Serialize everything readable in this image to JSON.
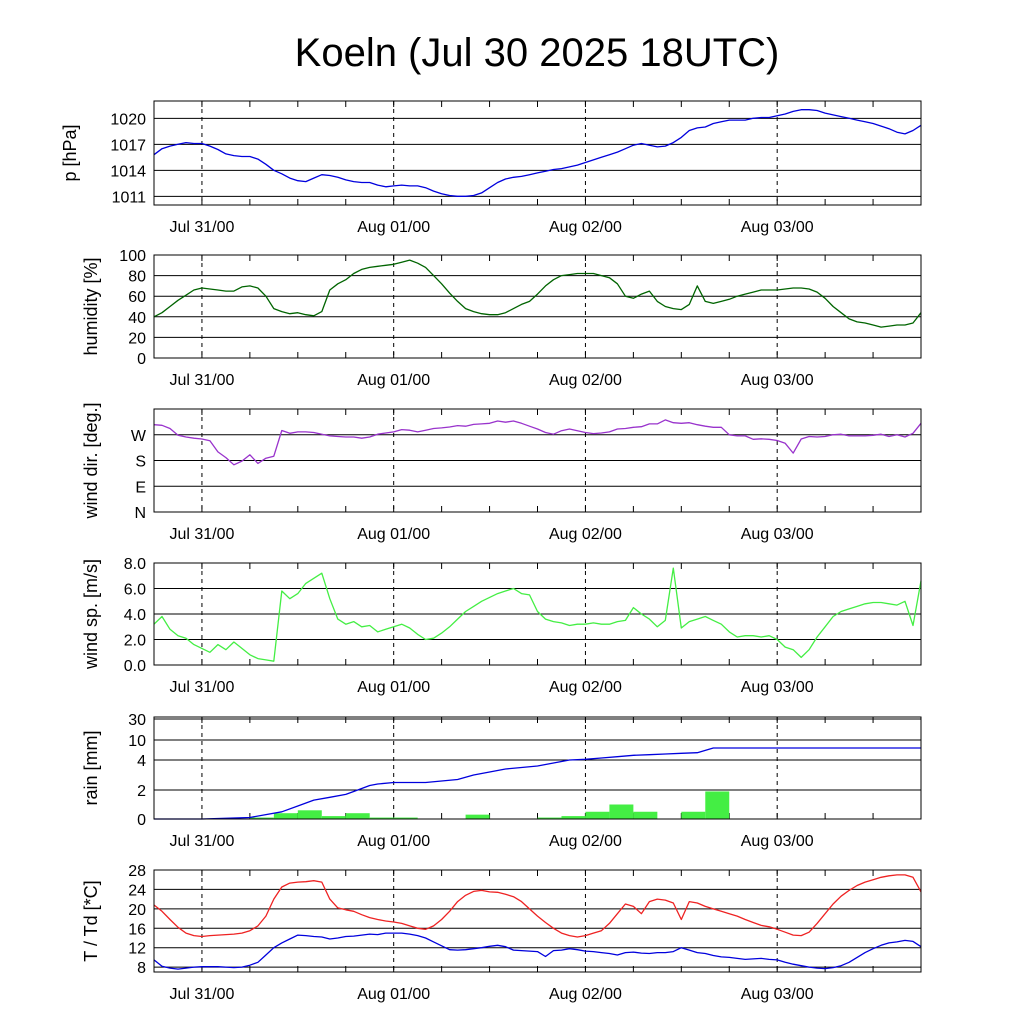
{
  "title": "Koeln (Jul 30 2025 18UTC)",
  "x_tick_labels": [
    "Jul 31/00",
    "Aug 01/00",
    "Aug 02/00",
    "Aug 03/00"
  ],
  "x_range_hours": [
    0,
    96
  ],
  "x_major_hours": [
    6,
    30,
    54,
    78
  ],
  "chart_data": [
    {
      "type": "line",
      "ylabel": "p [hPa]",
      "yticks": [
        1011,
        1014,
        1017,
        1020
      ],
      "ylim": [
        1010,
        1022
      ],
      "color": "#0000dd",
      "x": [
        0,
        1,
        2,
        3,
        4,
        5,
        6,
        7,
        8,
        9,
        10,
        11,
        12,
        13,
        14,
        15,
        16,
        17,
        18,
        19,
        20,
        21,
        22,
        23,
        24,
        25,
        26,
        27,
        28,
        29,
        30,
        31,
        32,
        33,
        34,
        35,
        36,
        37,
        38,
        39,
        40,
        41,
        42,
        43,
        44,
        45,
        46,
        47,
        48,
        49,
        50,
        51,
        52,
        53,
        54,
        55,
        56,
        57,
        58,
        59,
        60,
        61,
        62,
        63,
        64,
        65,
        66,
        67,
        68,
        69,
        70,
        71,
        72,
        73,
        74,
        75,
        76,
        77,
        78,
        79,
        80,
        81,
        82,
        83,
        84,
        85,
        86,
        87,
        88,
        89,
        90,
        91,
        92,
        93,
        94,
        95,
        96
      ],
      "values": [
        1015.8,
        1016.5,
        1016.8,
        1017.0,
        1017.2,
        1017.1,
        1017.1,
        1016.8,
        1016.4,
        1015.9,
        1015.7,
        1015.6,
        1015.6,
        1015.3,
        1014.7,
        1014.0,
        1013.6,
        1013.1,
        1012.8,
        1012.7,
        1013.1,
        1013.5,
        1013.4,
        1013.2,
        1012.9,
        1012.7,
        1012.6,
        1012.6,
        1012.3,
        1012.1,
        1012.2,
        1012.3,
        1012.2,
        1012.2,
        1012.0,
        1011.6,
        1011.3,
        1011.1,
        1011.0,
        1011.0,
        1011.1,
        1011.4,
        1012.0,
        1012.6,
        1013.0,
        1013.2,
        1013.3,
        1013.5,
        1013.7,
        1013.9,
        1014.1,
        1014.2,
        1014.4,
        1014.6,
        1014.9,
        1015.2,
        1015.5,
        1015.8,
        1016.1,
        1016.5,
        1016.9,
        1017.1,
        1016.9,
        1016.7,
        1016.8,
        1017.2,
        1017.8,
        1018.6,
        1018.9,
        1019.0,
        1019.4,
        1019.6,
        1019.8,
        1019.8,
        1019.8,
        1020.0,
        1020.1,
        1020.1,
        1020.3,
        1020.5,
        1020.8,
        1021.0,
        1021.0,
        1020.9,
        1020.6,
        1020.4,
        1020.2,
        1020.0,
        1019.8,
        1019.6,
        1019.4,
        1019.1,
        1018.8,
        1018.4,
        1018.2,
        1018.6,
        1019.2
      ]
    },
    {
      "type": "line",
      "ylabel": "humidity [%]",
      "yticks": [
        0,
        20,
        40,
        60,
        80,
        100
      ],
      "ylim": [
        0,
        100
      ],
      "color": "#006400",
      "x": [
        0,
        1,
        2,
        3,
        4,
        5,
        6,
        7,
        8,
        9,
        10,
        11,
        12,
        13,
        14,
        15,
        16,
        17,
        18,
        19,
        20,
        21,
        22,
        23,
        24,
        25,
        26,
        27,
        28,
        29,
        30,
        31,
        32,
        33,
        34,
        35,
        36,
        37,
        38,
        39,
        40,
        41,
        42,
        43,
        44,
        45,
        46,
        47,
        48,
        49,
        50,
        51,
        52,
        53,
        54,
        55,
        56,
        57,
        58,
        59,
        60,
        61,
        62,
        63,
        64,
        65,
        66,
        67,
        68,
        69,
        70,
        71,
        72,
        73,
        74,
        75,
        76,
        77,
        78,
        79,
        80,
        81,
        82,
        83,
        84,
        85,
        86,
        87,
        88,
        89,
        90,
        91,
        92,
        93,
        94,
        95,
        96
      ],
      "values": [
        40,
        44,
        50,
        56,
        61,
        66,
        68,
        67,
        66,
        65,
        65,
        69,
        70,
        68,
        60,
        48,
        45,
        43,
        44,
        42,
        41,
        45,
        66,
        72,
        76,
        82,
        86,
        88,
        89,
        90,
        91,
        93,
        95,
        92,
        88,
        80,
        72,
        63,
        55,
        48,
        45,
        43,
        42,
        42,
        44,
        48,
        52,
        55,
        62,
        70,
        76,
        80,
        81,
        82,
        82,
        82,
        80,
        78,
        72,
        60,
        58,
        62,
        65,
        55,
        50,
        48,
        47,
        52,
        70,
        55,
        53,
        55,
        57,
        60,
        62,
        64,
        66,
        66,
        66,
        67,
        68,
        68,
        67,
        64,
        58,
        50,
        44,
        38,
        35,
        34,
        32,
        30,
        31,
        32,
        32,
        34,
        44
      ]
    },
    {
      "type": "line",
      "ylabel": "wind dir. [deg.]",
      "yticks": [
        "N",
        "E",
        "S",
        "W"
      ],
      "yticks_deg": [
        0,
        90,
        180,
        270
      ],
      "ylim": [
        0,
        360
      ],
      "color": "#9933cc",
      "x": [
        0,
        1,
        2,
        3,
        4,
        5,
        6,
        7,
        8,
        9,
        10,
        11,
        12,
        13,
        14,
        15,
        16,
        17,
        18,
        19,
        20,
        21,
        22,
        23,
        24,
        25,
        26,
        27,
        28,
        29,
        30,
        31,
        32,
        33,
        34,
        35,
        36,
        37,
        38,
        39,
        40,
        41,
        42,
        43,
        44,
        45,
        46,
        47,
        48,
        49,
        50,
        51,
        52,
        53,
        54,
        55,
        56,
        57,
        58,
        59,
        60,
        61,
        62,
        63,
        64,
        65,
        66,
        67,
        68,
        69,
        70,
        71,
        72,
        73,
        74,
        75,
        76,
        77,
        78,
        79,
        80,
        81,
        82,
        83,
        84,
        85,
        86,
        87,
        88,
        89,
        90,
        91,
        92,
        93,
        94,
        95,
        96
      ],
      "values": [
        305,
        303,
        292,
        268,
        262,
        258,
        255,
        249,
        210,
        190,
        165,
        178,
        200,
        170,
        188,
        195,
        285,
        275,
        280,
        280,
        278,
        272,
        266,
        264,
        262,
        262,
        258,
        262,
        272,
        276,
        280,
        288,
        286,
        280,
        286,
        292,
        294,
        297,
        302,
        300,
        306,
        308,
        310,
        318,
        314,
        318,
        310,
        300,
        290,
        278,
        272,
        284,
        290,
        284,
        278,
        274,
        276,
        280,
        290,
        292,
        296,
        298,
        308,
        308,
        322,
        312,
        310,
        312,
        305,
        300,
        296,
        296,
        270,
        266,
        266,
        254,
        256,
        254,
        250,
        240,
        206,
        255,
        264,
        262,
        264,
        270,
        272,
        266,
        266,
        266,
        268,
        272,
        264,
        270,
        262,
        275,
        310
      ]
    },
    {
      "type": "line",
      "ylabel": "wind sp. [m/s]",
      "yticks": [
        "0.0",
        "2.0",
        "4.0",
        "6.0",
        "8.0"
      ],
      "ylim": [
        0,
        8
      ],
      "color": "#44ee44",
      "x": [
        0,
        1,
        2,
        3,
        4,
        5,
        6,
        7,
        8,
        9,
        10,
        11,
        12,
        13,
        14,
        15,
        16,
        17,
        18,
        19,
        20,
        21,
        22,
        23,
        24,
        25,
        26,
        27,
        28,
        29,
        30,
        31,
        32,
        33,
        34,
        35,
        36,
        37,
        38,
        39,
        40,
        41,
        42,
        43,
        44,
        45,
        46,
        47,
        48,
        49,
        50,
        51,
        52,
        53,
        54,
        55,
        56,
        57,
        58,
        59,
        60,
        61,
        62,
        63,
        64,
        65,
        66,
        67,
        68,
        69,
        70,
        71,
        72,
        73,
        74,
        75,
        76,
        77,
        78,
        79,
        80,
        81,
        82,
        83,
        84,
        85,
        86,
        87,
        88,
        89,
        90,
        91,
        92,
        93,
        94,
        95,
        96
      ],
      "values": [
        3.2,
        3.8,
        2.8,
        2.3,
        2.1,
        1.6,
        1.3,
        1.0,
        1.6,
        1.2,
        1.8,
        1.3,
        0.8,
        0.5,
        0.4,
        0.3,
        5.8,
        5.2,
        5.6,
        6.4,
        6.8,
        7.2,
        5.2,
        3.6,
        3.2,
        3.4,
        3.0,
        3.1,
        2.6,
        2.8,
        3.0,
        3.2,
        2.9,
        2.4,
        2.0,
        2.1,
        2.5,
        3.0,
        3.6,
        4.2,
        4.6,
        5.0,
        5.3,
        5.6,
        5.8,
        6.0,
        5.6,
        5.5,
        4.2,
        3.6,
        3.4,
        3.3,
        3.1,
        3.2,
        3.2,
        3.3,
        3.2,
        3.2,
        3.4,
        3.5,
        4.5,
        4.0,
        3.6,
        3.0,
        3.5,
        7.6,
        2.9,
        3.4,
        3.6,
        3.8,
        3.5,
        3.2,
        2.6,
        2.2,
        2.3,
        2.3,
        2.2,
        2.3,
        2.0,
        1.4,
        1.2,
        0.6,
        1.2,
        2.2,
        3.0,
        3.8,
        4.2,
        4.4,
        4.6,
        4.8,
        4.9,
        4.9,
        4.8,
        4.7,
        5.0,
        3.1,
        6.6
      ]
    },
    {
      "type": "bar+line",
      "ylabel": "rain [mm]",
      "yticks": [
        0,
        2,
        4,
        10,
        30
      ],
      "ylim": [
        0,
        30
      ],
      "bar_color": "#44ee44",
      "line_color": "#0000dd",
      "bars": {
        "start_hour": [
          12,
          15,
          18,
          21,
          24,
          27,
          30,
          39,
          48,
          51,
          54,
          57,
          60,
          66,
          69
        ],
        "width_hours": 3,
        "values": [
          0.1,
          0.4,
          0.6,
          0.2,
          0.4,
          0.1,
          0.1,
          0.3,
          0.1,
          0.2,
          0.5,
          1.0,
          0.5,
          0.5,
          1.9
        ]
      },
      "x": [
        0,
        6,
        9,
        12,
        14,
        16,
        18,
        20,
        22,
        24,
        25,
        26,
        27,
        28,
        30,
        32,
        34,
        36,
        38,
        40,
        42,
        44,
        46,
        48,
        50,
        52,
        54,
        56,
        58,
        60,
        62,
        64,
        66,
        68,
        70,
        72,
        74,
        76,
        78,
        80,
        82,
        84,
        86,
        88,
        90,
        92,
        94,
        96
      ],
      "values": [
        0,
        0,
        0.05,
        0.1,
        0.3,
        0.5,
        0.9,
        1.3,
        1.5,
        1.7,
        1.9,
        2.1,
        2.3,
        2.4,
        2.5,
        2.5,
        2.5,
        2.6,
        2.7,
        3.0,
        3.2,
        3.4,
        3.5,
        3.6,
        3.8,
        4.0,
        4.2,
        4.6,
        5.0,
        5.4,
        5.6,
        5.8,
        6.0,
        6.2,
        7.6,
        7.6,
        7.6,
        7.6,
        7.6,
        7.6,
        7.6,
        7.6,
        7.6,
        7.6,
        7.6,
        7.6,
        7.6,
        7.6
      ]
    },
    {
      "type": "line",
      "ylabel": "T / Td [*C]",
      "yticks": [
        8,
        12,
        16,
        20,
        24,
        28
      ],
      "ylim": [
        7,
        28
      ],
      "x": [
        0,
        1,
        2,
        3,
        4,
        5,
        6,
        7,
        8,
        9,
        10,
        11,
        12,
        13,
        14,
        15,
        16,
        17,
        18,
        19,
        20,
        21,
        22,
        23,
        24,
        25,
        26,
        27,
        28,
        29,
        30,
        31,
        32,
        33,
        34,
        35,
        36,
        37,
        38,
        39,
        40,
        41,
        42,
        43,
        44,
        45,
        46,
        47,
        48,
        49,
        50,
        51,
        52,
        53,
        54,
        55,
        56,
        57,
        58,
        59,
        60,
        61,
        62,
        63,
        64,
        65,
        66,
        67,
        68,
        69,
        70,
        71,
        72,
        73,
        74,
        75,
        76,
        77,
        78,
        79,
        80,
        81,
        82,
        83,
        84,
        85,
        86,
        87,
        88,
        89,
        90,
        91,
        92,
        93,
        94,
        95,
        96
      ],
      "series": [
        {
          "color": "#ee2222",
          "values": [
            20.8,
            19.5,
            17.8,
            16.2,
            15.0,
            14.5,
            14.3,
            14.5,
            14.6,
            14.7,
            14.8,
            15.0,
            15.5,
            16.5,
            18.5,
            22.0,
            24.5,
            25.3,
            25.5,
            25.6,
            25.8,
            25.5,
            22.0,
            20.2,
            19.8,
            19.5,
            18.8,
            18.2,
            17.8,
            17.5,
            17.3,
            17.0,
            16.5,
            16.0,
            15.8,
            16.5,
            17.8,
            19.5,
            21.5,
            22.8,
            23.6,
            23.8,
            23.5,
            23.4,
            23.0,
            22.5,
            21.5,
            20.0,
            18.5,
            17.2,
            16.0,
            15.0,
            14.5,
            14.2,
            14.5,
            15.0,
            15.5,
            17.0,
            19.0,
            21.0,
            20.5,
            19.0,
            21.5,
            22.0,
            21.8,
            21.2,
            17.8,
            21.5,
            21.2,
            20.5,
            20.0,
            19.5,
            19.0,
            18.5,
            17.8,
            17.2,
            16.6,
            16.3,
            15.8,
            15.2,
            14.6,
            14.5,
            15.2,
            17.0,
            19.0,
            21.0,
            22.6,
            23.8,
            24.8,
            25.5,
            26.0,
            26.5,
            26.8,
            27.0,
            27.0,
            26.5,
            23.5
          ]
        },
        {
          "color": "#0000dd",
          "values": [
            9.5,
            8.2,
            7.8,
            7.6,
            7.8,
            8.0,
            8.1,
            8.1,
            8.1,
            8.0,
            7.9,
            8.0,
            8.4,
            9.0,
            10.5,
            12.0,
            13.0,
            13.8,
            14.6,
            14.5,
            14.3,
            14.2,
            13.8,
            14.0,
            14.3,
            14.4,
            14.6,
            14.8,
            14.7,
            15.0,
            15.0,
            15.0,
            14.8,
            14.5,
            14.0,
            13.2,
            12.4,
            11.6,
            11.5,
            11.6,
            11.8,
            12.0,
            12.3,
            12.5,
            12.2,
            11.5,
            11.4,
            11.3,
            11.2,
            10.2,
            11.4,
            11.5,
            11.8,
            11.6,
            11.3,
            11.2,
            11.0,
            10.8,
            10.5,
            11.0,
            11.1,
            10.9,
            10.8,
            11.0,
            11.0,
            11.2,
            12.0,
            11.5,
            11.0,
            10.8,
            10.4,
            10.1,
            10.0,
            9.8,
            9.6,
            9.7,
            9.8,
            9.6,
            9.5,
            9.0,
            8.6,
            8.3,
            8.0,
            7.8,
            7.7,
            7.9,
            8.3,
            9.0,
            10.0,
            11.0,
            11.8,
            12.5,
            13.0,
            13.2,
            13.5,
            13.3,
            12.2
          ]
        }
      ]
    }
  ]
}
